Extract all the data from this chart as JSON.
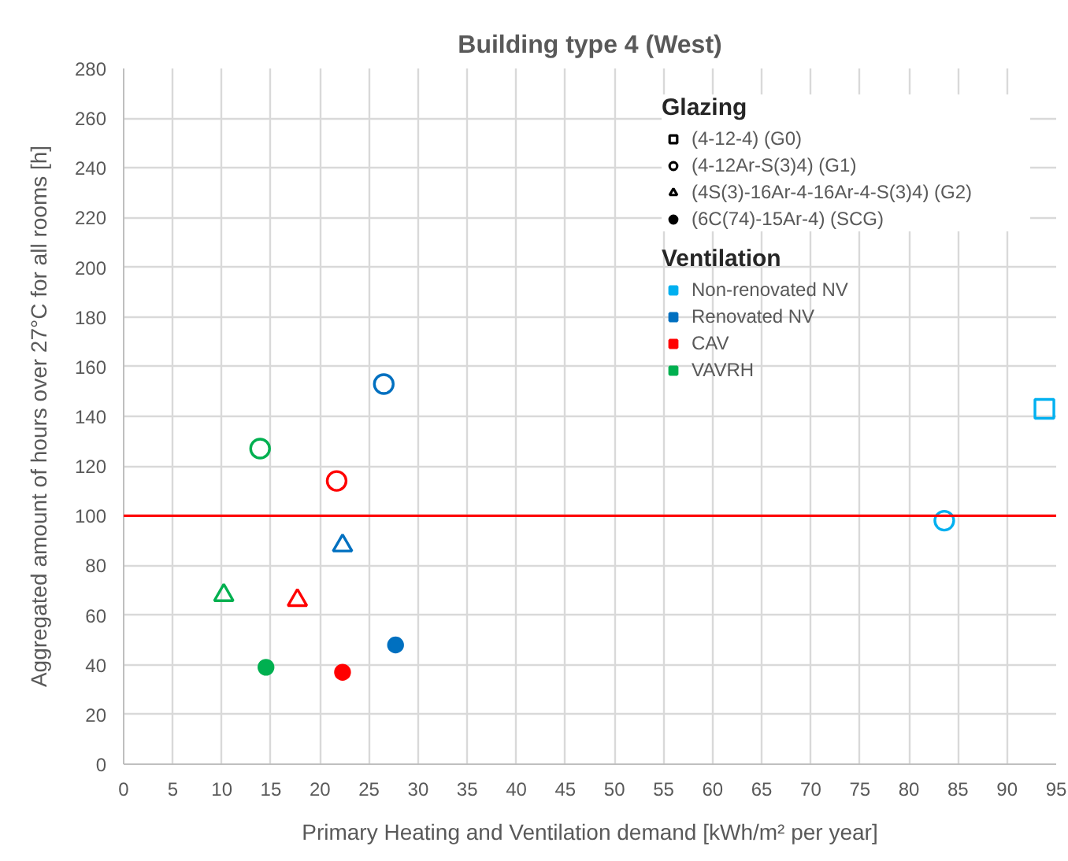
{
  "chart_data": {
    "type": "scatter",
    "title": "Building type 4 (West)",
    "xlabel": "Primary Heating and Ventilation demand [kWh/m² per year]",
    "ylabel": "Aggregated amount of hours over 27°C for all rooms [h]",
    "xlim": [
      0,
      95
    ],
    "xticks": [
      0,
      5,
      10,
      15,
      20,
      25,
      30,
      35,
      40,
      45,
      50,
      55,
      60,
      65,
      70,
      75,
      80,
      85,
      90,
      95
    ],
    "ylim": [
      0,
      280
    ],
    "yticks": [
      0,
      20,
      40,
      60,
      80,
      100,
      120,
      140,
      160,
      180,
      200,
      220,
      240,
      260,
      280
    ],
    "grid": true,
    "legend": "top right",
    "legend_title": [
      "Glazing",
      "Ventilation"
    ],
    "ref_lines": [
      {
        "axis": "y",
        "value": 100,
        "color": "#ff0000"
      }
    ],
    "series": [
      {
        "marker": "square",
        "color": "#00b0f0",
        "x": [
          93.8
        ],
        "values": [
          143
        ]
      },
      {
        "marker": "circle",
        "color": "#00b0f0",
        "x": [
          83.6
        ],
        "values": [
          98
        ]
      },
      {
        "marker": "circle",
        "color": "#0070c0",
        "x": [
          26.5
        ],
        "values": [
          153
        ]
      },
      {
        "marker": "circle",
        "color": "#ff0000",
        "x": [
          21.7
        ],
        "values": [
          114
        ]
      },
      {
        "marker": "circle",
        "color": "#00b050",
        "x": [
          13.9
        ],
        "values": [
          127
        ]
      },
      {
        "marker": "triangle",
        "color": "#0070c0",
        "x": [
          22.3
        ],
        "values": [
          88
        ]
      },
      {
        "marker": "triangle",
        "color": "#ff0000",
        "x": [
          17.7
        ],
        "values": [
          66
        ]
      },
      {
        "marker": "triangle",
        "color": "#00b050",
        "x": [
          10.2
        ],
        "values": [
          68
        ]
      },
      {
        "marker": "dot",
        "color": "#0070c0",
        "x": [
          27.7
        ],
        "values": [
          48
        ]
      },
      {
        "marker": "dot",
        "color": "#ff0000",
        "x": [
          22.3
        ],
        "values": [
          37
        ]
      },
      {
        "marker": "dot",
        "color": "#00b050",
        "x": [
          14.5
        ],
        "values": [
          39
        ]
      },
      {
        "name": "(4-12-4) (G0)",
        "marker": "square",
        "color": "#000000"
      },
      {
        "name": "(4-12Ar-S(3)4) (G1)",
        "marker": "circle",
        "color": "#000000"
      },
      {
        "name": "(4S(3)-16Ar-4-16Ar-4-S(3)4) (G2)",
        "marker": "triangle",
        "color": "#000000"
      },
      {
        "name": "(6C(74)-15Ar-4) (SCG)",
        "marker": "dot",
        "color": "#000000"
      },
      {
        "name": "Non-renovated NV",
        "color": "#00b0f0"
      },
      {
        "name": "Renovated NV",
        "color": "#0070c0"
      },
      {
        "name": "CAV",
        "color": "#ff0000"
      },
      {
        "name": "VAVRH",
        "color": "#00b050"
      }
    ]
  }
}
